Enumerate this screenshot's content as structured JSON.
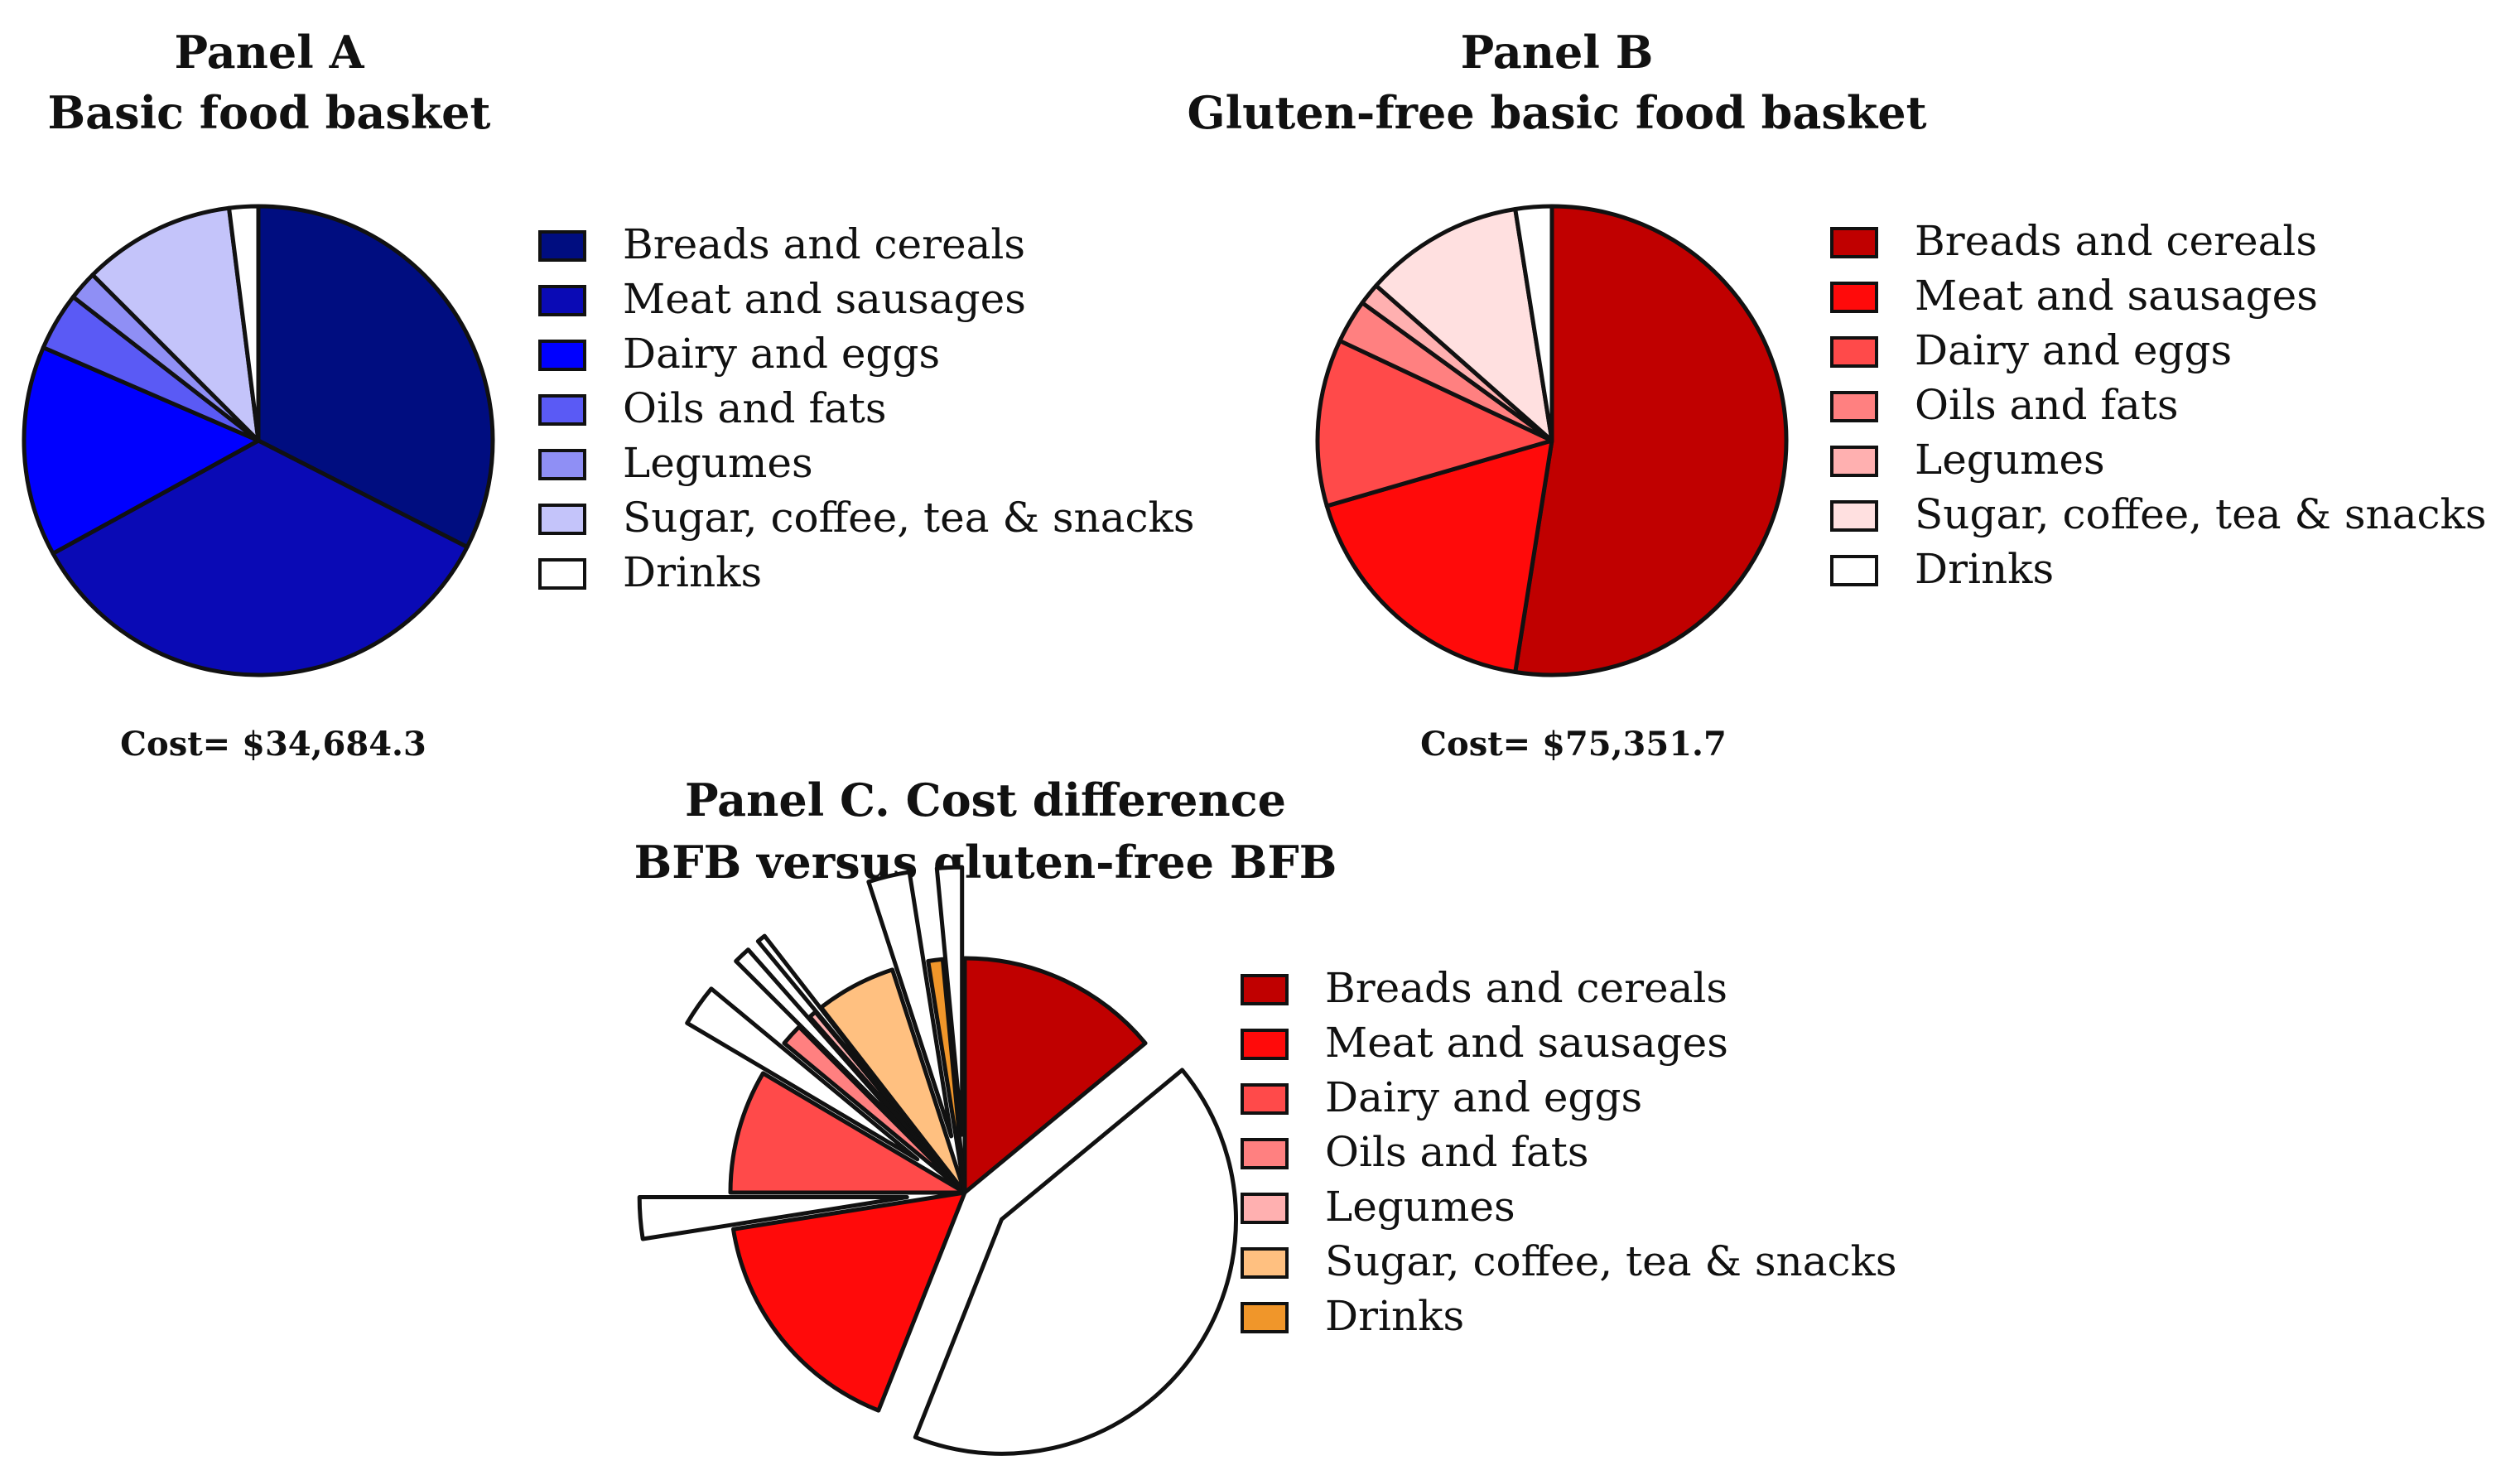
{
  "chart_data": [
    {
      "type": "pie",
      "id": "panel-a",
      "title": "Panel A",
      "subtitle": "Basic food basket",
      "categories": [
        "Breads and cereals",
        "Meat and sausages",
        "Dairy and eggs",
        "Oils and fats",
        "Legumes",
        "Sugar, coffee, tea & snacks",
        "Drinks"
      ],
      "values": [
        32.5,
        34.5,
        14.5,
        4.0,
        2.0,
        10.5,
        2.0
      ],
      "colors": [
        "#000d80",
        "#0a0ab5",
        "#0000ff",
        "#5a5af5",
        "#8f8ff5",
        "#c4c4fa",
        "#ffffff"
      ],
      "cost_label": "Cost= $34,684.3",
      "legend": "right"
    },
    {
      "type": "pie",
      "id": "panel-b",
      "title": "Panel B",
      "subtitle": "Gluten-free basic food basket",
      "categories": [
        "Breads and cereals",
        "Meat and sausages",
        "Dairy and eggs",
        "Oils and fats",
        "Legumes",
        "Sugar, coffee, tea & snacks",
        "Drinks"
      ],
      "values": [
        52.5,
        18.0,
        11.5,
        3.0,
        1.5,
        11.0,
        2.5
      ],
      "colors": [
        "#c00000",
        "#ff0a0a",
        "#ff4a4a",
        "#ff8080",
        "#ffb0b0",
        "#ffe0e0",
        "#ffffff"
      ],
      "cost_label": "Cost= $75,351.7",
      "legend": "right"
    },
    {
      "type": "pie",
      "id": "panel-c",
      "title": "Panel C. Cost difference",
      "subtitle": "BFB versus gluten-free BFB",
      "categories": [
        "Breads and cereals",
        "Meat and sausages",
        "Dairy and eggs",
        "Oils and fats",
        "Legumes",
        "Sugar, coffee, tea & snacks",
        "Drinks"
      ],
      "slices": [
        {
          "category": "Breads and cereals",
          "value": 14.0,
          "color": "#c00000",
          "exploded": false
        },
        {
          "category": "",
          "value": 42.0,
          "color": "#ffffff",
          "exploded": true
        },
        {
          "category": "Meat and sausages",
          "value": 16.5,
          "color": "#ff0a0a",
          "exploded": false
        },
        {
          "category": "",
          "value": 2.5,
          "color": "#ffffff",
          "exploded": true
        },
        {
          "category": "Dairy and eggs",
          "value": 8.5,
          "color": "#ff4a4a",
          "exploded": false
        },
        {
          "category": "",
          "value": 2.5,
          "color": "#ffffff",
          "exploded": true
        },
        {
          "category": "Oils and fats",
          "value": 1.5,
          "color": "#ff8080",
          "exploded": false
        },
        {
          "category": "",
          "value": 1.0,
          "color": "#ffffff",
          "exploded": true
        },
        {
          "category": "Legumes",
          "value": 0.5,
          "color": "#ffb0b0",
          "exploded": false
        },
        {
          "category": "",
          "value": 0.5,
          "color": "#ffffff",
          "exploded": true
        },
        {
          "category": "Sugar, coffee, tea & snacks",
          "value": 5.5,
          "color": "#ffc080",
          "exploded": false
        },
        {
          "category": "",
          "value": 2.5,
          "color": "#ffffff",
          "exploded": true
        },
        {
          "category": "Drinks",
          "value": 1.0,
          "color": "#f0962a",
          "exploded": false
        },
        {
          "category": "",
          "value": 1.5,
          "color": "#ffffff",
          "exploded": true
        }
      ],
      "legend_colors": [
        "#c00000",
        "#ff0a0a",
        "#ff4a4a",
        "#ff8080",
        "#ffb0b0",
        "#ffc080",
        "#f0962a"
      ],
      "legend": "right"
    }
  ]
}
